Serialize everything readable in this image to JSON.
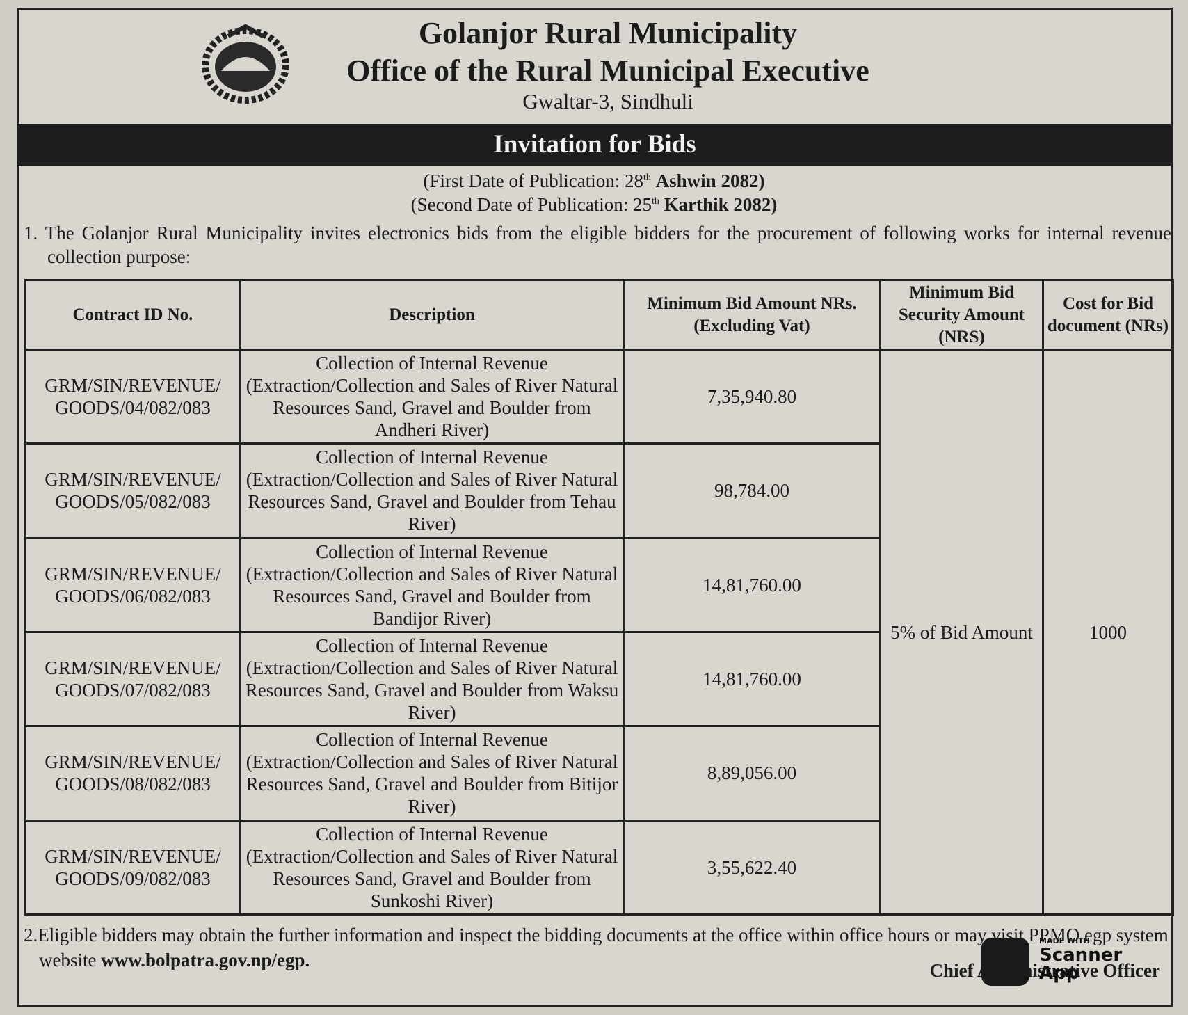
{
  "header": {
    "title": "Golanjor Rural Municipality",
    "subtitle": "Office of the Rural Municipal Executive",
    "address": "Gwaltar-3, Sindhuli"
  },
  "banner": "Invitation for Bids",
  "publication": {
    "first": {
      "label": "(First Date of Publication:",
      "day": "28",
      "suffix": "th",
      "month_year": "Ashwin 2082)"
    },
    "second": {
      "label": "(Second Date of Publication:",
      "day": "25",
      "suffix": "th",
      "month_year": "Karthik 2082)"
    }
  },
  "paragraph_1": "1. The Golanjor Rural Municipality invites electronics bids from the eligible bidders for the procurement of following works for internal revenue collection purpose:",
  "table": {
    "headers": [
      "Contract ID No.",
      "Description",
      "Minimum Bid Amount NRs. (Excluding Vat)",
      "Minimum Bid Security Amount (NRS)",
      "Cost for Bid document (NRs)"
    ],
    "rows": [
      [
        "GRM/SIN/REVENUE/ GOODS/04/082/083",
        "Collection of Internal Revenue (Extraction/Collection and Sales of River Natural Resources Sand, Gravel and Boulder from Andheri River)",
        "7,35,940.80"
      ],
      [
        "GRM/SIN/REVENUE/ GOODS/05/082/083",
        "Collection of Internal Revenue (Extraction/Collection and Sales of River Natural Resources Sand, Gravel and Boulder from Tehau River)",
        "98,784.00"
      ],
      [
        "GRM/SIN/REVENUE/ GOODS/06/082/083",
        "Collection of Internal Revenue (Extraction/Collection and Sales of River Natural Resources Sand, Gravel and Boulder from Bandijor River)",
        "14,81,760.00"
      ],
      [
        "GRM/SIN/REVENUE/ GOODS/07/082/083",
        "Collection of Internal Revenue (Extraction/Collection and Sales of River Natural Resources Sand, Gravel and Boulder from Waksu River)",
        "14,81,760.00"
      ],
      [
        "GRM/SIN/REVENUE/ GOODS/08/082/083",
        "Collection of Internal Revenue (Extraction/Collection and Sales of River Natural Resources Sand, Gravel and Boulder from Bitijor River)",
        "8,89,056.00"
      ],
      [
        "GRM/SIN/REVENUE/ GOODS/09/082/083",
        "Collection of Internal Revenue (Extraction/Collection and Sales of River Natural Resources Sand, Gravel and Boulder from Sunkoshi River)",
        "3,55,622.40"
      ]
    ],
    "security": "5% of Bid Amount",
    "cost": "1000"
  },
  "paragraph_2": {
    "text": "2.Eligible bidders may obtain the further information and inspect the bidding documents at the office within office hours or may visit PPMO egp system website",
    "website": "www.bolpatra.gov.np/egp."
  },
  "signature": "Chief Administrative Officer",
  "watermark": {
    "made_with": "MADE WITH",
    "name": "Scanner",
    "app": "App"
  }
}
